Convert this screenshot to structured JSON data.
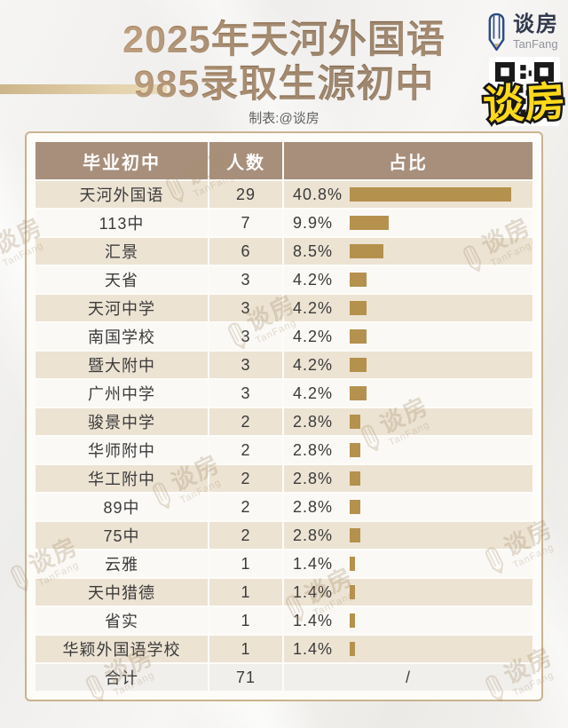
{
  "header": {
    "title_line1": "2025年天河外国语",
    "title_line2": "985录取生源初中",
    "credit": "制表:@谈房"
  },
  "brand": {
    "zh": "谈房",
    "en": "TanFang",
    "icon": "pencil-icon"
  },
  "sticker": {
    "text": "谈房",
    "text_color": "#ffd91a"
  },
  "watermark": {
    "zh": "谈房",
    "en": "TanFang"
  },
  "theme": {
    "title_color": "#8a6848",
    "header_bg": "#a78f7b",
    "row_alt_bg": "#ece3d3",
    "row_bg": "#faf9f6",
    "bar_color": "#b5914e",
    "card_border": "#c9b390"
  },
  "table": {
    "columns": [
      "毕业初中",
      "人数",
      "占比"
    ],
    "rows": [
      {
        "school": "天河外国语",
        "count": "29",
        "pct_label": "40.8%",
        "pct": 40.8
      },
      {
        "school": "113中",
        "count": "7",
        "pct_label": "9.9%",
        "pct": 9.9
      },
      {
        "school": "汇景",
        "count": "6",
        "pct_label": "8.5%",
        "pct": 8.5
      },
      {
        "school": "天省",
        "count": "3",
        "pct_label": "4.2%",
        "pct": 4.2
      },
      {
        "school": "天河中学",
        "count": "3",
        "pct_label": "4.2%",
        "pct": 4.2
      },
      {
        "school": "南国学校",
        "count": "3",
        "pct_label": "4.2%",
        "pct": 4.2
      },
      {
        "school": "暨大附中",
        "count": "3",
        "pct_label": "4.2%",
        "pct": 4.2
      },
      {
        "school": "广州中学",
        "count": "3",
        "pct_label": "4.2%",
        "pct": 4.2
      },
      {
        "school": "骏景中学",
        "count": "2",
        "pct_label": "2.8%",
        "pct": 2.8
      },
      {
        "school": "华师附中",
        "count": "2",
        "pct_label": "2.8%",
        "pct": 2.8
      },
      {
        "school": "华工附中",
        "count": "2",
        "pct_label": "2.8%",
        "pct": 2.8
      },
      {
        "school": "89中",
        "count": "2",
        "pct_label": "2.8%",
        "pct": 2.8
      },
      {
        "school": "75中",
        "count": "2",
        "pct_label": "2.8%",
        "pct": 2.8
      },
      {
        "school": "云雅",
        "count": "1",
        "pct_label": "1.4%",
        "pct": 1.4
      },
      {
        "school": "天中猎德",
        "count": "1",
        "pct_label": "1.4%",
        "pct": 1.4
      },
      {
        "school": "省实",
        "count": "1",
        "pct_label": "1.4%",
        "pct": 1.4
      },
      {
        "school": "华颖外国语学校",
        "count": "1",
        "pct_label": "1.4%",
        "pct": 1.4
      }
    ],
    "total": {
      "label": "合计",
      "count": "71",
      "ratio": "/"
    }
  },
  "chart_data": {
    "type": "bar",
    "title": "2025年天河外国语985录取生源初中",
    "categories": [
      "天河外国语",
      "113中",
      "汇景",
      "天省",
      "天河中学",
      "南国学校",
      "暨大附中",
      "广州中学",
      "骏景中学",
      "华师附中",
      "华工附中",
      "89中",
      "75中",
      "云雅",
      "天中猎德",
      "省实",
      "华颖外国语学校"
    ],
    "series": [
      {
        "name": "人数",
        "values": [
          29,
          7,
          6,
          3,
          3,
          3,
          3,
          3,
          2,
          2,
          2,
          2,
          2,
          1,
          1,
          1,
          1
        ]
      },
      {
        "name": "占比(%)",
        "values": [
          40.8,
          9.9,
          8.5,
          4.2,
          4.2,
          4.2,
          4.2,
          4.2,
          2.8,
          2.8,
          2.8,
          2.8,
          2.8,
          1.4,
          1.4,
          1.4,
          1.4
        ]
      }
    ],
    "total": 71,
    "xlabel": "毕业初中",
    "ylabel": "占比",
    "orientation": "horizontal",
    "grid": false,
    "legend_position": "none"
  }
}
